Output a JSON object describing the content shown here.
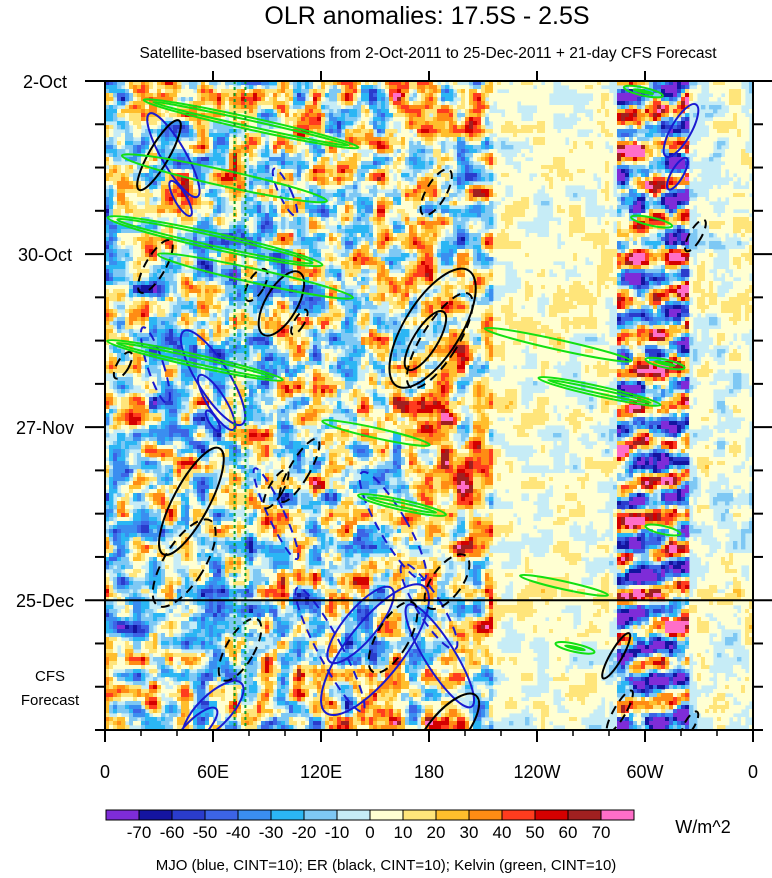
{
  "chart_data": {
    "type": "heatmap",
    "title": "OLR anomalies: 17.5S - 2.5S",
    "subtitle": "Satellite-based bservations from 2-Oct-2011 to 25-Dec-2011 + 21-day CFS Forecast",
    "x_ticks": [
      {
        "lon": 0,
        "label": "0"
      },
      {
        "lon": 60,
        "label": "60E"
      },
      {
        "lon": 120,
        "label": "120E"
      },
      {
        "lon": 180,
        "label": "180"
      },
      {
        "lon": 240,
        "label": "120W"
      },
      {
        "lon": 300,
        "label": "60W"
      },
      {
        "lon": 360,
        "label": "0"
      }
    ],
    "x_range": [
      0,
      360
    ],
    "y_axis": {
      "start": "2-Oct-2011",
      "observations_end": "25-Dec-2011",
      "forecast_days": 21,
      "labels": [
        {
          "date": "2011-10-02",
          "label": "2-Oct"
        },
        {
          "date": "2011-10-30",
          "label": "30-Oct"
        },
        {
          "date": "2011-11-27",
          "label": "27-Nov"
        },
        {
          "date": "2011-12-25",
          "label": "25-Dec"
        }
      ],
      "forecast_label": [
        "CFS",
        "Forecast"
      ]
    },
    "observation_forecast_divider": "2011-12-25",
    "colorbar": {
      "levels": [
        -70,
        -60,
        -50,
        -40,
        -30,
        -20,
        -10,
        0,
        10,
        20,
        30,
        40,
        50,
        60,
        70
      ],
      "labels": [
        "-70",
        "-60",
        "-50",
        "-40",
        "-30",
        "-20",
        "-10",
        "0",
        "10",
        "20",
        "30",
        "40",
        "50",
        "60",
        "70"
      ],
      "colors": [
        "#7e2cd8",
        "#1414a0",
        "#2a3ccc",
        "#3c64e6",
        "#3a8ef0",
        "#2bb6f4",
        "#7ec8f4",
        "#c6ecf6",
        "#ffffd2",
        "#ffe57a",
        "#ffbe2c",
        "#ff8c14",
        "#ff3c1e",
        "#d40000",
        "#a02020",
        "#ff6ec8"
      ],
      "units": "W/m^2"
    },
    "footer": "MJO (blue, CINT=10); ER (black, CINT=10); Kelvin (green, CINT=10)",
    "contour_colors": {
      "MJO": "#1a1ad0",
      "ER": "#000000",
      "Kelvin": "#12e012"
    },
    "reference_lines_lon": [
      72,
      78
    ]
  }
}
